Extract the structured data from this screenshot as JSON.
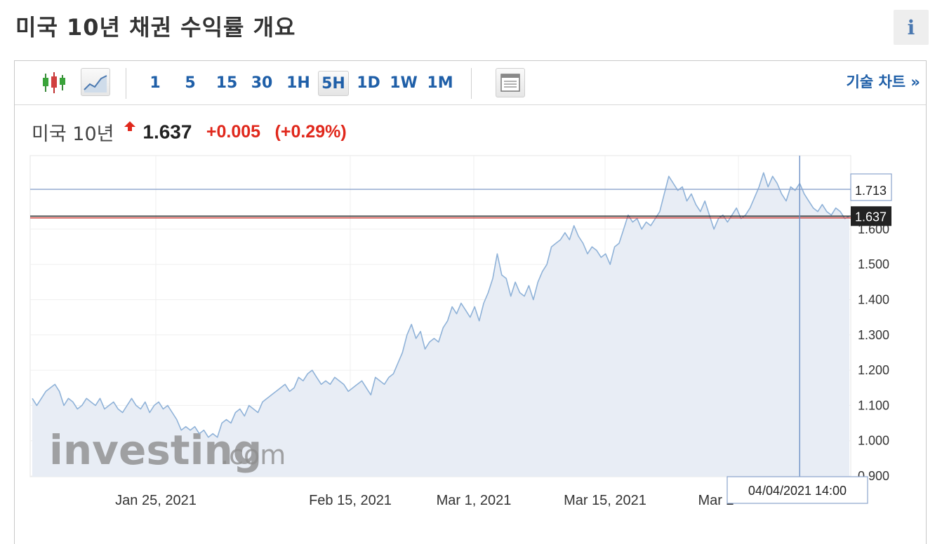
{
  "page": {
    "title": "미국 10년 채권 수익률 개요",
    "info_icon": "i"
  },
  "toolbar": {
    "chart_types": [
      "candlestick-icon",
      "area-chart-icon"
    ],
    "intervals": [
      "1",
      "5",
      "15",
      "30",
      "1H",
      "5H",
      "1D",
      "1W",
      "1M"
    ],
    "active_interval": "5H",
    "layout_icon": "layout-icon",
    "tech_chart_label": "기술 차트 »"
  },
  "quote": {
    "name": "미국 10년",
    "direction_icon": "up-arrow-icon",
    "price": "1.637",
    "change": "+0.005",
    "change_pct": "(+0.29%)",
    "change_color": "#e0281c"
  },
  "crosshair": {
    "date": "04/04/2021 14:00"
  },
  "watermark": {
    "text_main": "investing",
    "text_suffix": ".com"
  },
  "chart_data": {
    "type": "area",
    "x_tick_labels": [
      "Jan 25, 2021",
      "Feb 15, 2021",
      "Mar 1, 2021",
      "Mar 15, 2021",
      "Mar 2"
    ],
    "y_ticks": [
      "0.900",
      "1.000",
      "1.100",
      "1.200",
      "1.300",
      "1.400",
      "1.500",
      "1.600"
    ],
    "ylim": [
      0.9,
      1.8
    ],
    "grid": true,
    "series": [
      {
        "color": "#8fb2d8",
        "fill": "#e8edf5",
        "values": [
          1.12,
          1.1,
          1.12,
          1.14,
          1.15,
          1.16,
          1.14,
          1.1,
          1.12,
          1.11,
          1.09,
          1.1,
          1.12,
          1.11,
          1.1,
          1.12,
          1.09,
          1.1,
          1.11,
          1.09,
          1.08,
          1.1,
          1.12,
          1.1,
          1.09,
          1.11,
          1.08,
          1.1,
          1.11,
          1.09,
          1.1,
          1.08,
          1.06,
          1.03,
          1.04,
          1.03,
          1.04,
          1.02,
          1.03,
          1.01,
          1.02,
          1.01,
          1.05,
          1.06,
          1.05,
          1.08,
          1.09,
          1.07,
          1.1,
          1.09,
          1.08,
          1.11,
          1.12,
          1.13,
          1.14,
          1.15,
          1.16,
          1.14,
          1.15,
          1.18,
          1.17,
          1.19,
          1.2,
          1.18,
          1.16,
          1.17,
          1.16,
          1.18,
          1.17,
          1.16,
          1.14,
          1.15,
          1.16,
          1.17,
          1.15,
          1.13,
          1.18,
          1.17,
          1.16,
          1.18,
          1.19,
          1.22,
          1.25,
          1.3,
          1.33,
          1.29,
          1.31,
          1.26,
          1.28,
          1.29,
          1.28,
          1.32,
          1.34,
          1.38,
          1.36,
          1.39,
          1.37,
          1.35,
          1.38,
          1.34,
          1.39,
          1.42,
          1.46,
          1.53,
          1.47,
          1.46,
          1.41,
          1.45,
          1.42,
          1.41,
          1.44,
          1.4,
          1.45,
          1.48,
          1.5,
          1.55,
          1.56,
          1.57,
          1.59,
          1.57,
          1.61,
          1.58,
          1.56,
          1.53,
          1.55,
          1.54,
          1.52,
          1.53,
          1.5,
          1.55,
          1.56,
          1.6,
          1.64,
          1.62,
          1.63,
          1.6,
          1.62,
          1.61,
          1.63,
          1.65,
          1.7,
          1.75,
          1.73,
          1.71,
          1.72,
          1.68,
          1.7,
          1.67,
          1.65,
          1.68,
          1.64,
          1.6,
          1.63,
          1.64,
          1.62,
          1.64,
          1.66,
          1.63,
          1.64,
          1.66,
          1.69,
          1.72,
          1.76,
          1.72,
          1.75,
          1.73,
          1.7,
          1.68,
          1.72,
          1.71,
          1.73,
          1.7,
          1.68,
          1.66,
          1.65,
          1.67,
          1.65,
          1.64,
          1.66,
          1.65,
          1.63,
          1.637
        ]
      }
    ],
    "reference_lines": [
      {
        "value": 1.713,
        "label": "1.713",
        "color": "#8aa4cc"
      },
      {
        "value": 1.637,
        "label": "1.637",
        "color": "#1a1a1a"
      },
      {
        "value": 1.632,
        "label": "",
        "color": "#c62b24"
      }
    ],
    "crosshair_index": 170
  }
}
